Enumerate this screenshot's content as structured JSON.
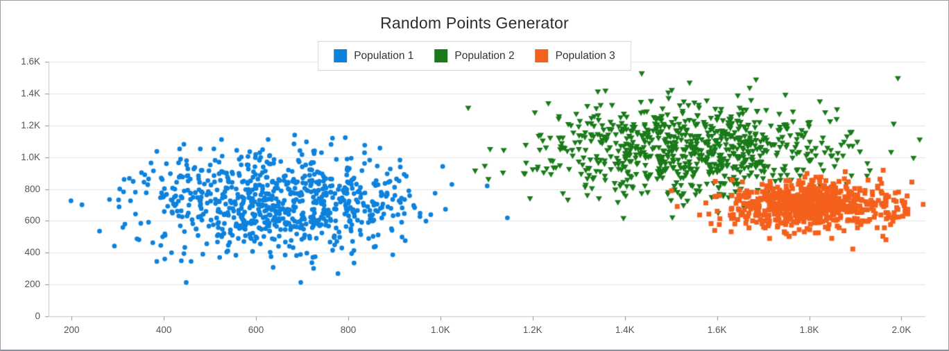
{
  "window": {
    "background": "#ffffff",
    "border_color": "#9d9d9d"
  },
  "chart_data": {
    "type": "scatter",
    "title": "Random Points Generator",
    "legend": {
      "position": "top-center"
    },
    "axes": {
      "x": {
        "min": 150,
        "max": 2052,
        "ticks": [
          200,
          400,
          600,
          800,
          1000,
          1200,
          1400,
          1600,
          1800,
          2000
        ],
        "tick_labels": [
          "200",
          "400",
          "600",
          "800",
          "1.0K",
          "1.2K",
          "1.4K",
          "1.6K",
          "1.8K",
          "2.0K"
        ],
        "grid": false
      },
      "y": {
        "min": 0,
        "max": 1600,
        "ticks": [
          0,
          200,
          400,
          600,
          800,
          1000,
          1200,
          1400,
          1600
        ],
        "tick_labels": [
          "0",
          "200",
          "400",
          "600",
          "800",
          "1.0K",
          "1.2K",
          "1.4K",
          "1.6K"
        ],
        "grid": true
      }
    },
    "series": [
      {
        "name": "Population 1",
        "color": "#0d82dd",
        "marker": "circle",
        "marker_size": 7,
        "count": 800,
        "seed": 101,
        "distribution": {
          "type": "gaussian",
          "mean_x": 660,
          "mean_y": 710,
          "sigma_x": 150,
          "sigma_y": 165
        }
      },
      {
        "name": "Population 2",
        "color": "#1a7a1a",
        "marker": "triangle-down",
        "marker_size": 9,
        "count": 800,
        "seed": 202,
        "distribution": {
          "type": "gaussian",
          "mean_x": 1545,
          "mean_y": 1050,
          "sigma_x": 160,
          "sigma_y": 150
        }
      },
      {
        "name": "Population 3",
        "color": "#f4611c",
        "marker": "square",
        "marker_size": 7,
        "count": 700,
        "seed": 303,
        "distribution": {
          "type": "gaussian",
          "mean_x": 1805,
          "mean_y": 700,
          "sigma_x": 88,
          "sigma_y": 78
        }
      }
    ],
    "style": {
      "gridline_color": "#e4e4e4",
      "axis_line_color": "#c6c6c6",
      "tick_mark_color": "#8c8c8c",
      "tick_label_color": "#545454",
      "title_color": "#2d2d2d",
      "legend_text_color": "#323232",
      "plot_background": "#ffffff"
    }
  }
}
